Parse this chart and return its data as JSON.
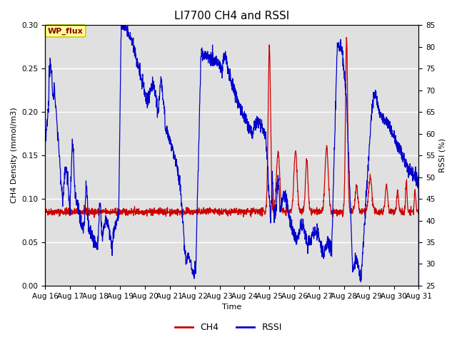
{
  "title": "LI7700 CH4 and RSSI",
  "xlabel": "Time",
  "ylabel_left": "CH4 Density (mmol/m3)",
  "ylabel_right": "RSSI (%)",
  "xlim_days": [
    16,
    31
  ],
  "ylim_left": [
    0.0,
    0.3
  ],
  "ylim_right": [
    25,
    85
  ],
  "yticks_left": [
    0.0,
    0.05,
    0.1,
    0.15,
    0.2,
    0.25,
    0.3
  ],
  "yticks_right": [
    25,
    30,
    35,
    40,
    45,
    50,
    55,
    60,
    65,
    70,
    75,
    80,
    85
  ],
  "xtick_labels": [
    "Aug 16",
    "Aug 17",
    "Aug 18",
    "Aug 19",
    "Aug 20",
    "Aug 21",
    "Aug 22",
    "Aug 23",
    "Aug 24",
    "Aug 25",
    "Aug 26",
    "Aug 27",
    "Aug 28",
    "Aug 29",
    "Aug 30",
    "Aug 31"
  ],
  "bg_color": "#e0e0e0",
  "ch4_color": "#cc0000",
  "rssi_color": "#0000cc",
  "annotation_text": "WP_flux",
  "annotation_bg": "#ffff99",
  "annotation_border": "#cccc00",
  "legend_entries": [
    "CH4",
    "RSSI"
  ],
  "legend_colors": [
    "#cc0000",
    "#0000cc"
  ],
  "title_fontsize": 11,
  "axis_fontsize": 8,
  "tick_fontsize": 7.5
}
